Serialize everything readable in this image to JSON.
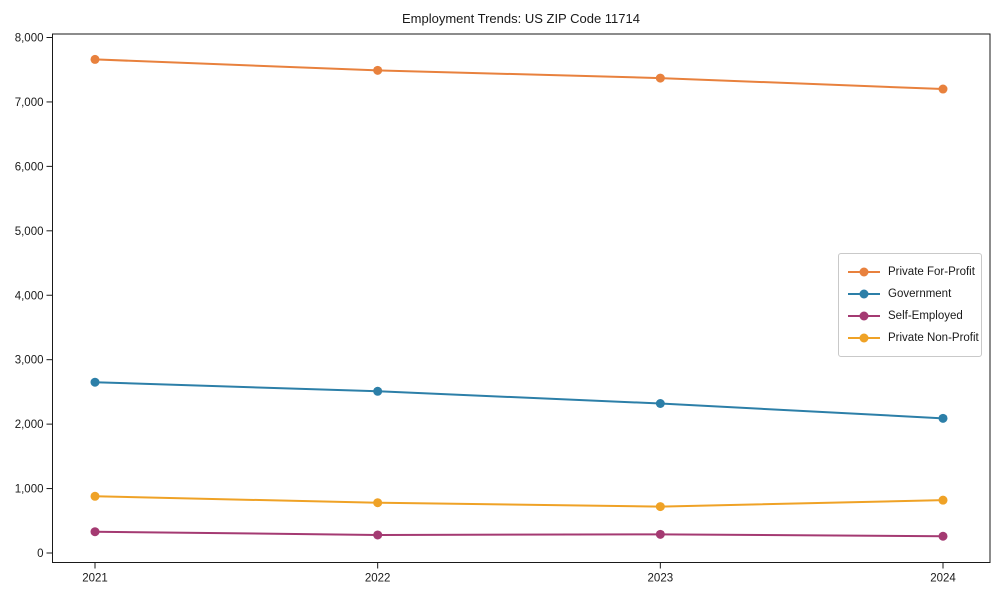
{
  "page": {
    "title": "Employment Trends: US ZIP Code 11714"
  },
  "chart_data": {
    "type": "line",
    "title": "Employment Trends: US ZIP Code 11714",
    "xlabel": "",
    "ylabel": "",
    "categories": [
      "2021",
      "2022",
      "2023",
      "2024"
    ],
    "series": [
      {
        "name": "Private For-Profit",
        "color": "#e8813d",
        "values": [
          7660,
          7490,
          7370,
          7200
        ]
      },
      {
        "name": "Government",
        "color": "#2c7fa8",
        "values": [
          2650,
          2510,
          2320,
          2090
        ]
      },
      {
        "name": "Self-Employed",
        "color": "#a43a72",
        "values": [
          330,
          280,
          290,
          260
        ]
      },
      {
        "name": "Private Non-Profit",
        "color": "#efa226",
        "values": [
          880,
          780,
          720,
          820
        ]
      }
    ],
    "ylim": [
      0,
      8000
    ],
    "yticks": [
      0,
      1000,
      2000,
      3000,
      4000,
      5000,
      6000,
      7000,
      8000
    ],
    "ytick_labels": [
      "0",
      "1,000",
      "2,000",
      "3,000",
      "4,000",
      "5,000",
      "6,000",
      "7,000",
      "8,000"
    ],
    "grid": false,
    "frame": "box",
    "legend_position": "middle-right",
    "marker": "circle",
    "axis_color": "#1a1a1a"
  }
}
